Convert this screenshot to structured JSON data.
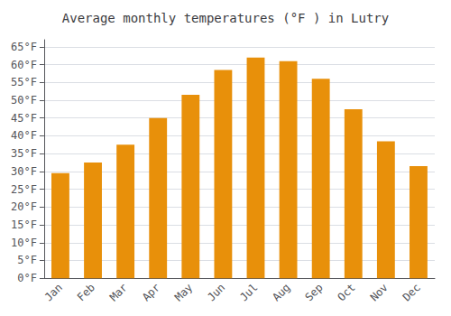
{
  "chart_data": {
    "type": "bar",
    "title": "Average monthly temperatures (°F ) in Lutry",
    "categories": [
      "Jan",
      "Feb",
      "Mar",
      "Apr",
      "May",
      "Jun",
      "Jul",
      "Aug",
      "Sep",
      "Oct",
      "Nov",
      "Dec"
    ],
    "values": [
      29.5,
      32.5,
      37.5,
      45.0,
      51.5,
      58.5,
      62.0,
      61.0,
      56.0,
      47.5,
      38.5,
      31.5
    ],
    "color": "#E8900A",
    "ylim": [
      0,
      67
    ],
    "yticks": [
      {
        "value": 0,
        "label": "0°F"
      },
      {
        "value": 5,
        "label": "5°F"
      },
      {
        "value": 10,
        "label": "10°F"
      },
      {
        "value": 15,
        "label": "15°F"
      },
      {
        "value": 20,
        "label": "20°F"
      },
      {
        "value": 25,
        "label": "25°F"
      },
      {
        "value": 30,
        "label": "30°F"
      },
      {
        "value": 35,
        "label": "35°F"
      },
      {
        "value": 40,
        "label": "40°F"
      },
      {
        "value": 45,
        "label": "45°F"
      },
      {
        "value": 50,
        "label": "50°F"
      },
      {
        "value": 55,
        "label": "55°F"
      },
      {
        "value": 60,
        "label": "60°F"
      },
      {
        "value": 65,
        "label": "65°F"
      }
    ],
    "grid": true
  }
}
